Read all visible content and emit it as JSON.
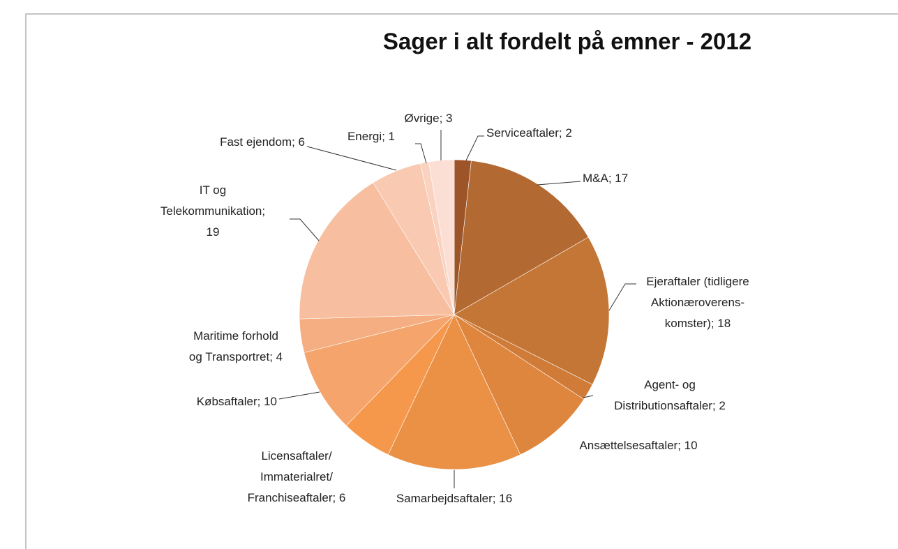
{
  "chart_data": {
    "type": "pie",
    "title": "Sager i alt fordelt på emner - 2012",
    "values": [
      2,
      17,
      18,
      2,
      10,
      16,
      6,
      10,
      4,
      19,
      6,
      1,
      3
    ],
    "value_labels": [
      "Serviceaftaler; 2",
      "M&A; 17",
      "Ejeraftaler (tidligere\nAktionæroverens-\nkomster); 18",
      "Agent- og\nDistributionsaftaler; 2",
      "Ansættelsesaftaler; 10",
      "Samarbejdsaftaler; 16",
      "Licensaftaler/\nImmaterialret/\nFranchiseaftaler; 6",
      "Købsaftaler; 10",
      "Maritime forhold\nog Transportret; 4",
      "IT og\nTelekommunikation;\n19",
      "Fast ejendom; 6",
      "Energi; 1",
      "Øvrige; 3"
    ],
    "colors": [
      "#9c5428",
      "#b36a32",
      "#c37635",
      "#d07c38",
      "#de853e",
      "#ea9146",
      "#f5984b",
      "#f5a46c",
      "#f5ae82",
      "#f7bea0",
      "#f9cab1",
      "#fad3c0",
      "#fcdfd4"
    ]
  }
}
